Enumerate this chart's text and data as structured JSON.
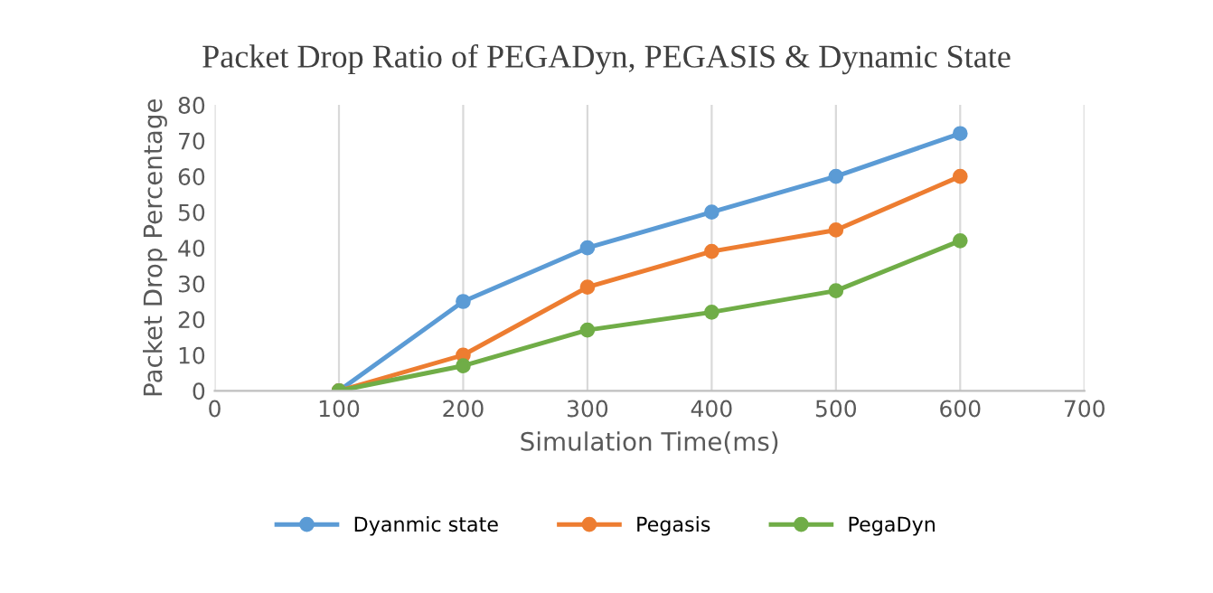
{
  "chart_data": {
    "type": "line",
    "title": "Packet Drop Ratio of PEGADyn, PEGASIS & Dynamic State",
    "xlabel": "Simulation Time(ms)",
    "ylabel": "Packet Drop Percentage",
    "x": [
      100,
      200,
      300,
      400,
      500,
      600
    ],
    "series": [
      {
        "name": "Dyanmic state",
        "color": "#5b9bd5",
        "values": [
          0,
          25,
          40,
          50,
          60,
          72
        ]
      },
      {
        "name": "Pegasis",
        "color": "#ed7d31",
        "values": [
          0,
          10,
          29,
          39,
          45,
          60
        ]
      },
      {
        "name": "PegaDyn",
        "color": "#70ad47",
        "values": [
          0,
          7,
          17,
          22,
          28,
          42
        ]
      }
    ],
    "xlim": [
      0,
      700
    ],
    "xticks": [
      0,
      100,
      200,
      300,
      400,
      500,
      600,
      700
    ],
    "ylim": [
      0,
      80
    ],
    "yticks": [
      0,
      10,
      20,
      30,
      40,
      50,
      60,
      70,
      80
    ],
    "grid": "x",
    "legend": "bottom",
    "marker": "circle",
    "line_style": "solid"
  }
}
